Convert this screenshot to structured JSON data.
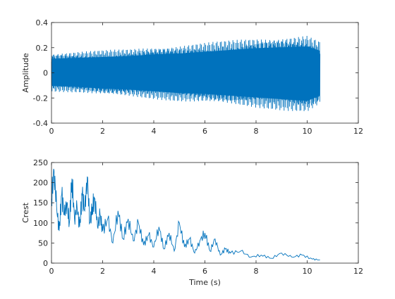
{
  "chart_data": [
    {
      "type": "line",
      "panel": "top",
      "title": "",
      "xlabel": "",
      "ylabel": "Amplitude",
      "xlim": [
        0,
        12
      ],
      "ylim": [
        -0.4,
        0.4
      ],
      "xticks": [
        "0",
        "2",
        "4",
        "6",
        "8",
        "10",
        "12"
      ],
      "yticks": [
        "-0.4",
        "-0.2",
        "0",
        "0.2",
        "0.4"
      ],
      "grid": false,
      "series": [
        {
          "color": "#0072BD",
          "style": "dense oscillating signal",
          "x_range": [
            0,
            10.5
          ],
          "envelope": {
            "x": [
              0,
              1,
              2,
              3,
              4,
              5,
              6,
              7,
              8,
              9,
              10,
              10.5
            ],
            "upper": [
              0.16,
              0.17,
              0.18,
              0.19,
              0.21,
              0.22,
              0.24,
              0.26,
              0.28,
              0.29,
              0.3,
              0.25
            ],
            "lower": [
              -0.15,
              -0.16,
              -0.18,
              -0.19,
              -0.21,
              -0.23,
              -0.24,
              -0.26,
              -0.28,
              -0.3,
              -0.32,
              -0.26
            ]
          }
        }
      ]
    },
    {
      "type": "line",
      "panel": "bottom",
      "title": "",
      "xlabel": "Time (s)",
      "ylabel": "Crest",
      "xlim": [
        0,
        12
      ],
      "ylim": [
        0,
        250
      ],
      "xticks": [
        "0",
        "2",
        "4",
        "6",
        "8",
        "10",
        "12"
      ],
      "yticks": [
        "0",
        "50",
        "100",
        "150",
        "200",
        "250"
      ],
      "grid": false,
      "series": [
        {
          "color": "#0072BD",
          "x": [
            0,
            0.1,
            0.2,
            0.3,
            0.4,
            0.5,
            0.6,
            0.7,
            0.8,
            0.9,
            1.0,
            1.1,
            1.2,
            1.3,
            1.4,
            1.5,
            1.6,
            1.7,
            1.8,
            1.9,
            2.0,
            2.2,
            2.4,
            2.6,
            2.8,
            3.0,
            3.2,
            3.4,
            3.6,
            3.8,
            4.0,
            4.2,
            4.4,
            4.6,
            4.8,
            5.0,
            5.2,
            5.4,
            5.6,
            5.8,
            6.0,
            6.2,
            6.4,
            6.6,
            6.8,
            7.0,
            7.4,
            7.8,
            8.2,
            8.6,
            9.0,
            9.4,
            9.8,
            10.2,
            10.5
          ],
          "values": [
            160,
            230,
            140,
            80,
            170,
            120,
            150,
            100,
            210,
            110,
            140,
            90,
            170,
            130,
            215,
            100,
            140,
            160,
            90,
            120,
            80,
            110,
            50,
            130,
            60,
            110,
            55,
            100,
            45,
            70,
            40,
            90,
            35,
            75,
            30,
            100,
            40,
            60,
            25,
            55,
            75,
            30,
            60,
            20,
            35,
            25,
            30,
            15,
            20,
            12,
            25,
            15,
            20,
            10,
            8
          ]
        }
      ]
    }
  ]
}
